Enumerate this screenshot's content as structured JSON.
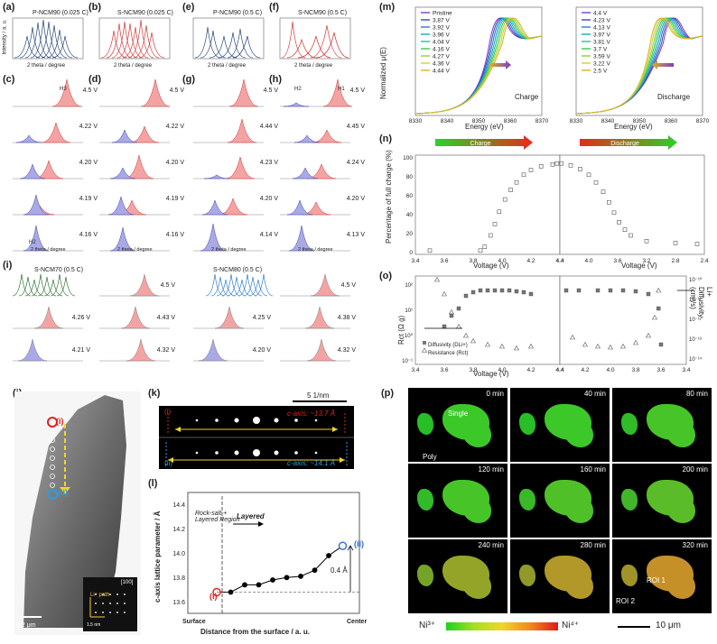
{
  "panel_labels": {
    "a": "(a)",
    "b": "(b)",
    "c": "(c)",
    "d": "(d)",
    "e": "(e)",
    "f": "(f)",
    "g": "(g)",
    "h": "(h)",
    "i": "(i)",
    "j": "(j)",
    "k": "(k)",
    "l": "(l)",
    "m": "(m)",
    "n": "(n)",
    "o": "(o)",
    "p": "(p)"
  },
  "top_row": [
    {
      "id": "a",
      "title": "P-NCM90 (0.025 C)",
      "color": "#1f3f73"
    },
    {
      "id": "b",
      "title": "S-NCM90 (0.025 C)",
      "color": "#d23232"
    },
    {
      "id": "e",
      "title": "P-NCM90 (0.5 C)",
      "color": "#1f3f73"
    },
    {
      "id": "f",
      "title": "S-NCM90 (0.5 C)",
      "color": "#d23232"
    }
  ],
  "axis_text": {
    "intensity": "Intensity / a. u.",
    "two_theta": "2 theta / degree"
  },
  "top_ticks": [
    "18.0",
    "18.5",
    "19.0",
    "19.5",
    "20.0"
  ],
  "columns": [
    {
      "id": "c",
      "voltages": [
        "4.5 V",
        "4.22 V",
        "4.20 V",
        "4.19 V",
        "4.16 V"
      ]
    },
    {
      "id": "d",
      "voltages": [
        "4.5 V",
        "4.22 V",
        "4.20 V",
        "4.19 V",
        "4.16 V"
      ]
    },
    {
      "id": "g",
      "voltages": [
        "4.5 V",
        "4.44 V",
        "4.23 V",
        "4.20 V",
        "4.14 V"
      ]
    },
    {
      "id": "h",
      "voltages": [
        "4.5 V",
        "4.45 V",
        "4.24 V",
        "4.20 V",
        "4.13 V"
      ]
    }
  ],
  "phase_labels": {
    "h1": "H1",
    "h2": "H2",
    "h3": "H3"
  },
  "panel_i": {
    "left_title": "S-NCM70 (0.5 C)",
    "right_title": "S-NCM80 (0.5 C)",
    "left_voltages": [
      "4.5 V",
      "4.26 V",
      "4.43 V",
      "4.21 V",
      "4.32 V"
    ],
    "right_voltages": [
      "4.5 V",
      "4.25 V",
      "4.38 V",
      "4.20 V",
      "4.32 V"
    ]
  },
  "panel_m": {
    "charge_legend": [
      "Pristine",
      "3.87 V",
      "3.92 V",
      "3.96 V",
      "4.04 V",
      "4.16 V",
      "4.27 V",
      "4.36 V",
      "4.44 V"
    ],
    "discharge_legend": [
      "4.4 V",
      "4.23 V",
      "4.13 V",
      "3.97 V",
      "3.81 V",
      "3.7 V",
      "3.59 V",
      "3.22 V",
      "2.5 V"
    ],
    "charge_label": "Charge",
    "discharge_label": "Discharge",
    "ylabel": "Normalized μ(E)",
    "xlabel": "Energy (eV)",
    "xticks": [
      "8330",
      "8340",
      "8350",
      "8360",
      "8370"
    ]
  },
  "panel_n": {
    "ylabel": "Percentage of full charge (%)",
    "xlabel": "Voltage (V)",
    "charge_arrow": "Charge",
    "discharge_arrow": "Discharge",
    "yticks": [
      "0",
      "20",
      "40",
      "60",
      "80",
      "100"
    ],
    "xticks_left": [
      "3.4",
      "3.6",
      "3.8",
      "4.0",
      "4.2",
      "4.4"
    ],
    "xticks_right": [
      "4.4",
      "4.0",
      "3.6",
      "3.2",
      "2.8",
      "2.4"
    ]
  },
  "panel_o": {
    "ylabel_left": "Rct (Ω g)",
    "ylabel_right": "Li+ Diffusivity (cm²/s)",
    "xlabel": "Voltage (V)",
    "legend_diffusivity": "Diffusivity (DLi+)",
    "legend_resistance": "Resistance (Rct)",
    "yticks_left": [
      "10⁻¹",
      "10⁰",
      "10¹",
      "10²"
    ],
    "yticks_right": [
      "10⁻¹⁰",
      "10⁻¹¹",
      "10⁻¹²",
      "10⁻¹³",
      "10⁻¹⁴"
    ],
    "xticks_left": [
      "3.4",
      "3.6",
      "3.8",
      "4.0",
      "4.2",
      "4.4"
    ],
    "xticks_right": [
      "4.4",
      "4.2",
      "4.0",
      "3.8",
      "3.6",
      "3.4"
    ]
  },
  "panel_j": {
    "marker_i": "(i)",
    "marker_ii": "(ii)",
    "scale": "0.2 μm",
    "inset_label": "[100]",
    "inset_path": "Li⁺ path",
    "inset_scale": "1.5 nm"
  },
  "panel_k": {
    "scale": "5 1/nm",
    "top_text": "c-axis: ~13.7 Å",
    "bottom_text": "c-axis: ~14.1 Å",
    "marker_i": "(i)",
    "marker_ii": "(ii)"
  },
  "panel_l": {
    "ylabel": "c-axis lattice parameter / Å",
    "xlabel": "Distance from the surface / a. u.",
    "region1": "Rock-salt + Layered Region",
    "region2": "Layered",
    "gap": "0.4 Å",
    "surface": "Surface",
    "center": "Center",
    "marker_i": "(i)",
    "marker_ii": "(ii)",
    "yticks": [
      "13.6",
      "13.8",
      "14.0",
      "14.2",
      "14.4"
    ]
  },
  "panel_p": {
    "times": [
      "0 min",
      "40 min",
      "80 min",
      "120 min",
      "160 min",
      "200 min",
      "240 min",
      "280 min",
      "320 min"
    ],
    "single": "Single",
    "poly": "Poly",
    "roi1": "ROI 1",
    "roi2": "ROI 2",
    "ni3": "Ni³⁺",
    "ni4": "Ni⁴⁺",
    "scale": "10 μm"
  }
}
